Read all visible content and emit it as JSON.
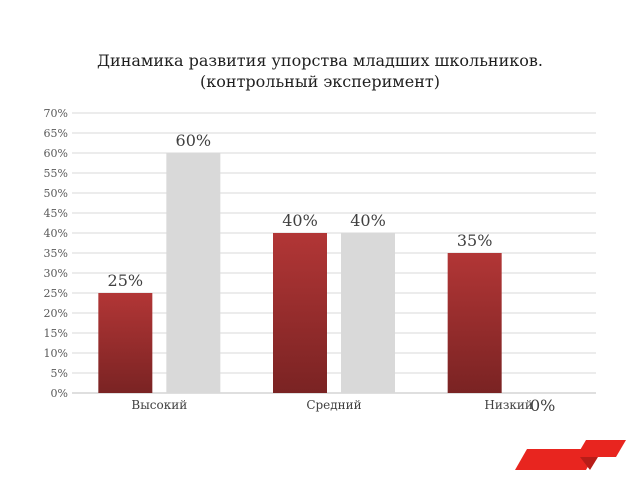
{
  "chart_data": {
    "type": "bar",
    "title": "Динамика развития упорства младших школьников.",
    "subtitle": "(контрольный эксперимент)",
    "categories": [
      "Высокий",
      "Средний",
      "Низкий"
    ],
    "series": [
      {
        "values": [
          25,
          40,
          35
        ],
        "color": "#a83232"
      },
      {
        "values": [
          60,
          40,
          0
        ],
        "color": "#d9d9d9"
      }
    ],
    "data_labels": [
      [
        "25%",
        "40%",
        "35%"
      ],
      [
        "60%",
        "40%",
        "0%"
      ]
    ],
    "ylim": [
      0,
      70
    ],
    "ytick_labels": [
      "0%",
      "5%",
      "10%",
      "15%",
      "20%",
      "25%",
      "30%",
      "35%",
      "40%",
      "45%",
      "50%",
      "55%",
      "60%",
      "65%",
      "70%"
    ],
    "grid": true,
    "xlabel": "",
    "ylabel": ""
  },
  "decoration": {
    "accent_color": "#e8251f",
    "accent_dark": "#b81d18",
    "icon": "red-parallelogram-logo-icon"
  }
}
